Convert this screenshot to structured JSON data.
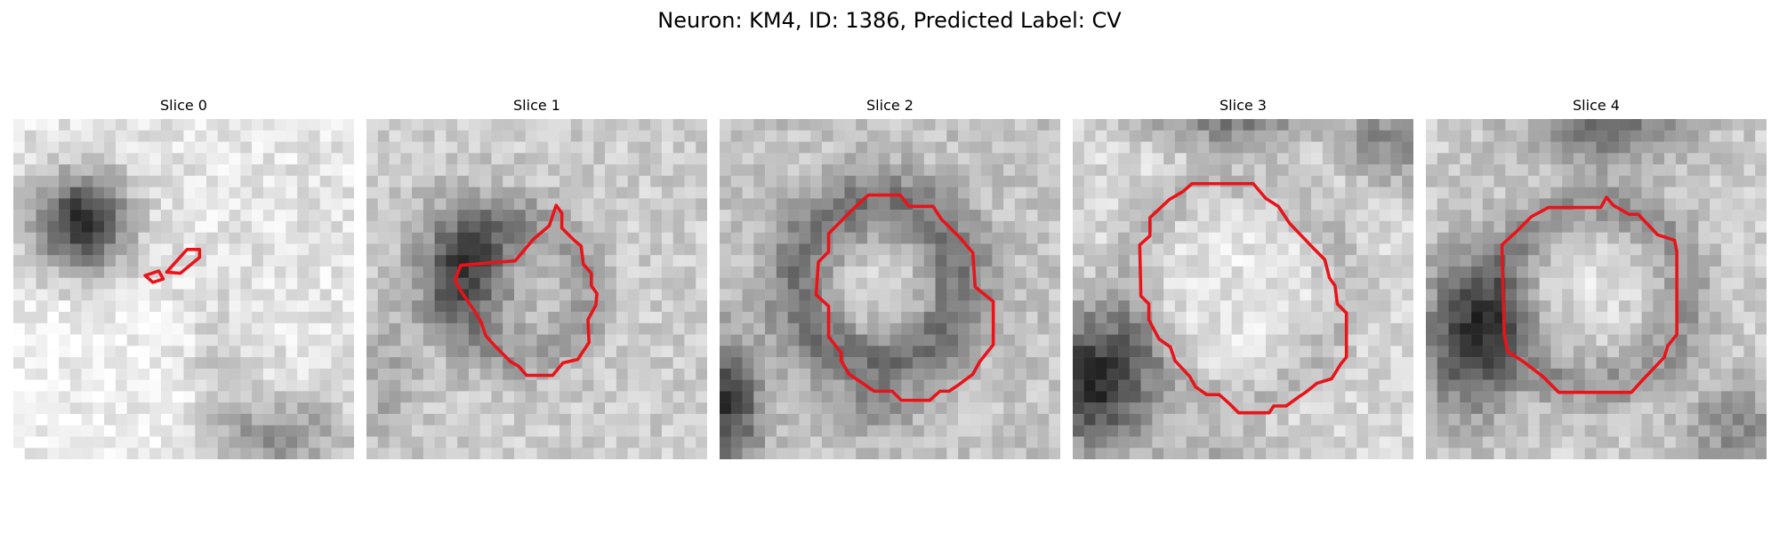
{
  "figure": {
    "title": "Neuron: KM4, ID: 1386, Predicted Label: CV"
  },
  "panels": [
    {
      "title": "Slice 0"
    },
    {
      "title": "Slice 1"
    },
    {
      "title": "Slice 2"
    },
    {
      "title": "Slice 3"
    },
    {
      "title": "Slice 4"
    }
  ],
  "colors": {
    "contour": "#e8141a",
    "background": "#ffffff"
  }
}
